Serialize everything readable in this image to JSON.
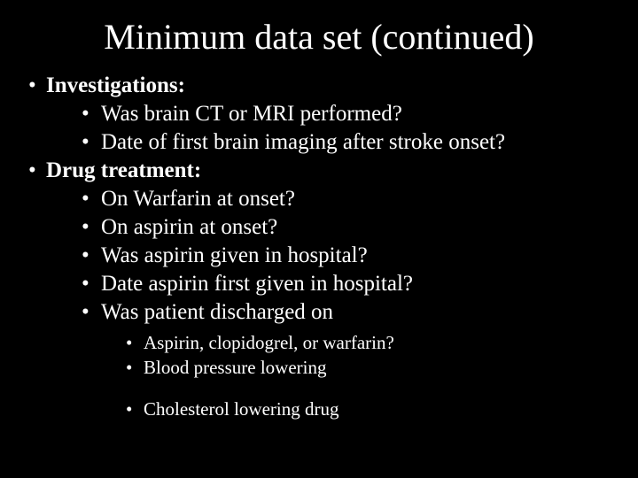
{
  "title": "Minimum data set (continued)",
  "sections": [
    {
      "heading": "Investigations:",
      "items": [
        {
          "text": "Was brain CT or MRI performed?",
          "style": "hollow"
        },
        {
          "text": "Date of first brain imaging after stroke onset?",
          "style": "solid"
        }
      ]
    },
    {
      "heading": "Drug treatment:",
      "items": [
        {
          "text": "On Warfarin at onset?",
          "style": "hollow"
        },
        {
          "text": "On aspirin at onset?",
          "style": "hollow"
        },
        {
          "text": "Was aspirin given in hospital?",
          "style": "solid"
        },
        {
          "text": "Date aspirin first given in hospital?",
          "style": "solid"
        },
        {
          "text": "Was patient discharged on",
          "style": "solid"
        }
      ],
      "sub_items": [
        {
          "text": "Aspirin, clopidogrel, or  warfarin?"
        },
        {
          "text": "Blood pressure lowering"
        },
        {
          "text": "Cholesterol lowering drug",
          "gap": true
        }
      ]
    }
  ]
}
